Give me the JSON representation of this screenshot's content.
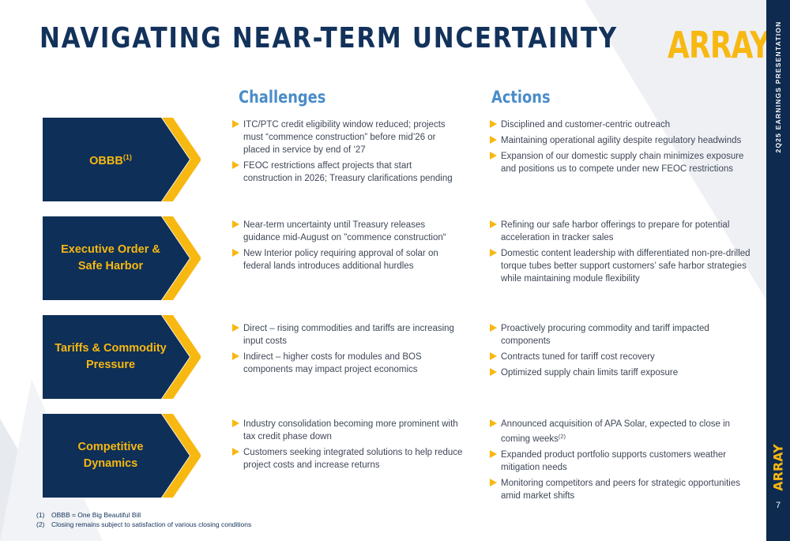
{
  "title": "NAVIGATING NEAR-TERM UNCERTAINTY",
  "logo": "ARRAY",
  "side_caption": "2Q25 EARNINGS PRESENTATION",
  "side_logo": "ARRAY",
  "page_number": "7",
  "colors": {
    "navy": "#12325b",
    "yellow": "#f7b811",
    "blue_heading": "#4a8cc8",
    "sidebar": "#0e2a4f"
  },
  "icons": {
    "bullet": "yellow-triangle-icon",
    "row_marker": "chevron-arrow-icon"
  },
  "headers": {
    "challenges": "Challenges",
    "actions": "Actions"
  },
  "rows": [
    {
      "label": "OBBB",
      "label_sup": "(1)",
      "label_line2": "",
      "challenges": [
        "ITC/PTC credit eligibility window reduced; projects must “commence construction” before mid’26 or placed in service by end of ‘27",
        "FEOC restrictions affect projects that start construction in 2026; Treasury clarifications pending"
      ],
      "actions": [
        {
          "text": "Disciplined and customer-centric outreach"
        },
        {
          "text": "Maintaining operational agility despite regulatory headwinds"
        },
        {
          "text": "Expansion of our domestic supply chain minimizes exposure and positions us to compete under new FEOC restrictions"
        }
      ]
    },
    {
      "label": "Executive Order &",
      "label_sup": "",
      "label_line2": "Safe Harbor",
      "challenges": [
        "Near-term uncertainty until Treasury releases guidance mid-August on \"commence construction“",
        "New Interior policy requiring approval of solar on federal lands introduces additional hurdles"
      ],
      "actions": [
        {
          "text": "Refining our safe harbor offerings to prepare for potential acceleration in tracker sales"
        },
        {
          "text": "Domestic content leadership with differentiated non-pre-drilled torque tubes better support customers’ safe harbor strategies while maintaining module flexibility"
        }
      ]
    },
    {
      "label": "Tariffs & Commodity",
      "label_sup": "",
      "label_line2": "Pressure",
      "challenges": [
        "Direct – rising commodities and tariffs are increasing input costs",
        "Indirect – higher costs for modules and BOS components may impact project economics"
      ],
      "actions": [
        {
          "text": "Proactively procuring commodity and tariff impacted components"
        },
        {
          "text": "Contracts tuned for tariff cost recovery"
        },
        {
          "text": "Optimized supply chain limits tariff exposure"
        }
      ]
    },
    {
      "label": "Competitive",
      "label_sup": "",
      "label_line2": "Dynamics",
      "challenges": [
        "Industry consolidation becoming more prominent with tax credit phase down",
        "Customers seeking integrated solutions to help reduce project costs and increase returns"
      ],
      "actions": [
        {
          "text": "Announced acquisition of APA Solar, expected to close in coming weeks",
          "sup": "(2)"
        },
        {
          "text": "Expanded product portfolio supports customers weather mitigation needs"
        },
        {
          "text": "Monitoring competitors and peers for strategic opportunities amid market shifts"
        }
      ]
    }
  ],
  "footnotes": [
    {
      "num": "(1)",
      "text": "OBBB = One Big Beautiful Bill"
    },
    {
      "num": "(2)",
      "text": "Closing remains subject to satisfaction of various closing conditions"
    }
  ]
}
